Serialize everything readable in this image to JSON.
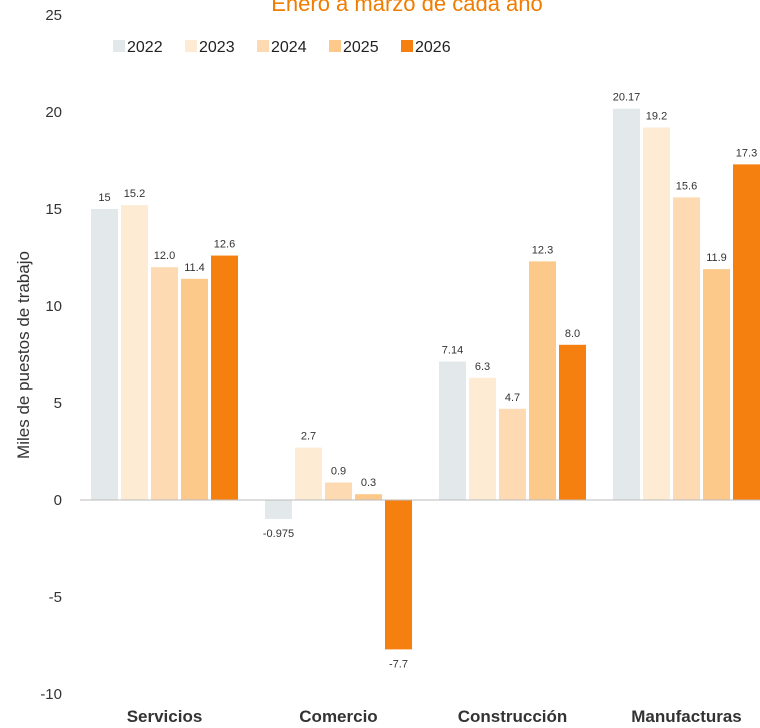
{
  "chart_data": {
    "type": "bar",
    "title": "Enero a marzo de cada año",
    "ylabel": "Miles de puestos de trabajo",
    "xlabel": "",
    "ylim": [
      -10,
      25
    ],
    "yticks": [
      -10,
      -5,
      0,
      5,
      10,
      15,
      20,
      25
    ],
    "categories": [
      "Servicios",
      "Comercio",
      "Construcción",
      "Manufacturas"
    ],
    "legend_position": "top-left",
    "grid": false,
    "series": [
      {
        "name": "2022",
        "color": "#e3e8ea",
        "values": [
          15,
          -0.975,
          7.14,
          20.17
        ],
        "labels": [
          "15",
          "-0.975",
          "7.14",
          "20.17"
        ]
      },
      {
        "name": "2023",
        "color": "#feebd4",
        "values": [
          15.2,
          2.7,
          6.3,
          19.2
        ],
        "labels": [
          "15.2",
          "2.7",
          "6.3",
          "19.2"
        ]
      },
      {
        "name": "2024",
        "color": "#fddab2",
        "values": [
          12.0,
          0.9,
          4.7,
          15.6
        ],
        "labels": [
          "12.0",
          "0.9",
          "4.7",
          "15.6"
        ]
      },
      {
        "name": "2025",
        "color": "#fcc98b",
        "values": [
          11.4,
          0.3,
          12.3,
          11.9
        ],
        "labels": [
          "11.4",
          "0.3",
          "12.3",
          "11.9"
        ]
      },
      {
        "name": "2026",
        "color": "#f5800f",
        "values": [
          12.6,
          -7.7,
          8.0,
          17.3
        ],
        "labels": [
          "12.6",
          "-7.7",
          "8.0",
          "17.3"
        ]
      }
    ]
  }
}
